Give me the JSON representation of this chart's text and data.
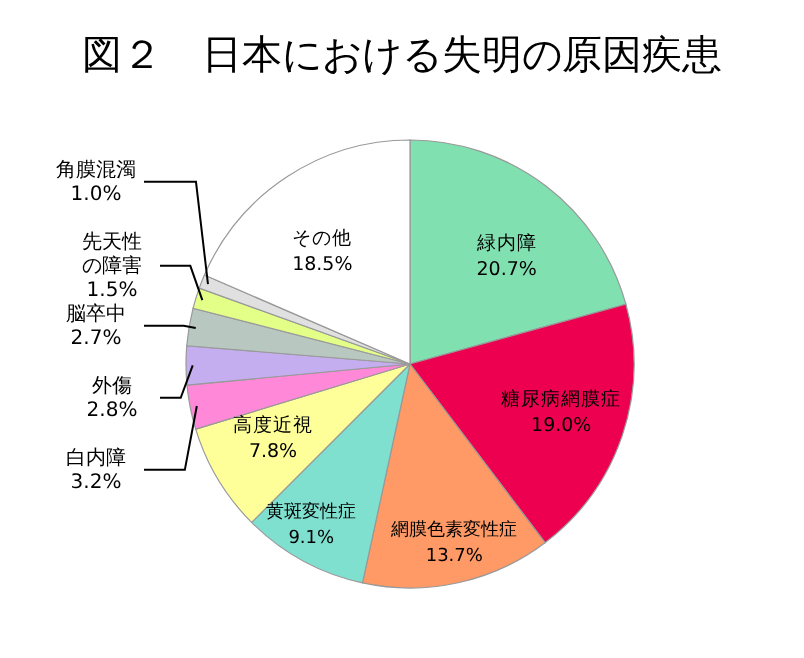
{
  "chart_data": {
    "type": "pie",
    "title": "図２　日本における失明の原因疾患",
    "categories": [
      "緑内障",
      "糖尿病網膜症",
      "網膜色素変性症",
      "黄斑変性症",
      "高度近視",
      "白内障",
      "外傷",
      "脳卒中",
      "先天性の障害",
      "角膜混濁",
      "その他"
    ],
    "values": [
      20.7,
      19.0,
      13.7,
      9.1,
      7.8,
      3.2,
      2.8,
      2.7,
      1.5,
      1.0,
      18.5
    ],
    "value_labels": [
      "20.7%",
      "19.0%",
      "13.7%",
      "9.1%",
      "7.8%",
      "3.2%",
      "2.8%",
      "2.7%",
      "1.5%",
      "1.0%",
      "18.5%"
    ],
    "colors": [
      "#80e0b0",
      "#ee0050",
      "#ff9966",
      "#80e0d0",
      "#ffff99",
      "#ff88d8",
      "#c4aef0",
      "#b8c8c0",
      "#e4ff88",
      "#e0e0e0",
      "#ffffff"
    ]
  }
}
